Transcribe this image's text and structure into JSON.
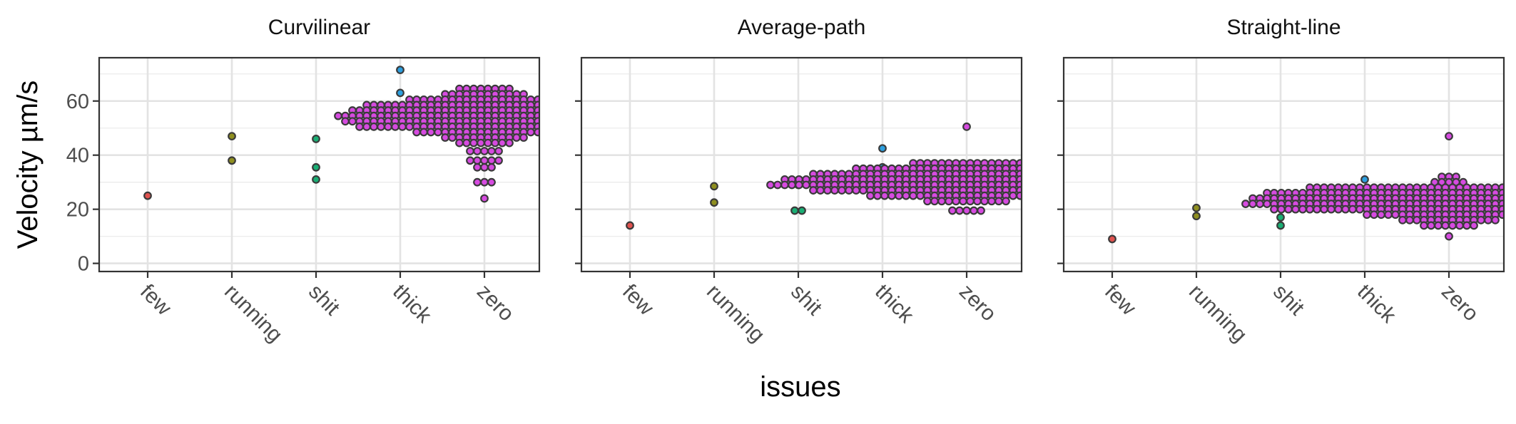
{
  "chart_data": {
    "type": "scatter",
    "style": "beeswarm-dotplot",
    "xlabel": "issues",
    "ylabel": "Velocity µm/s",
    "categories": [
      "few",
      "running",
      "shit",
      "thick",
      "zero"
    ],
    "category_colors": {
      "few": "#E0524F",
      "running": "#8F8F1F",
      "shit": "#1AAE74",
      "thick": "#2C9FE0",
      "zero": "#D64BE0"
    },
    "ylim": [
      -3,
      76
    ],
    "yticks": [
      0,
      20,
      40,
      60
    ],
    "grid": true,
    "legend": "none",
    "facets": [
      {
        "title": "Curvilinear",
        "points": {
          "few": [
            25
          ],
          "running": [
            38,
            47
          ],
          "shit": [
            31,
            35.5,
            46
          ],
          "thick": [
            63,
            71.5
          ]
        },
        "zero_rows": [
          {
            "y": 64.5,
            "n": 8
          },
          {
            "y": 62.5,
            "n": 12
          },
          {
            "y": 60.5,
            "n": 22
          },
          {
            "y": 58.5,
            "n": 34
          },
          {
            "y": 56.5,
            "n": 38
          },
          {
            "y": 54.5,
            "n": 42
          },
          {
            "y": 52.5,
            "n": 40
          },
          {
            "y": 50.5,
            "n": 36
          },
          {
            "y": 48.5,
            "n": 20
          },
          {
            "y": 46.5,
            "n": 12
          },
          {
            "y": 44.5,
            "n": 8
          },
          {
            "y": 41.5,
            "n": 5
          },
          {
            "y": 38,
            "n": 5
          },
          {
            "y": 35.5,
            "n": 3
          },
          {
            "y": 30,
            "n": 3
          },
          {
            "y": 24,
            "n": 1
          }
        ]
      },
      {
        "title": "Average-path",
        "points": {
          "few": [
            14
          ],
          "running": [
            22.5,
            28.5
          ],
          "shit": [
            19.5,
            19.5,
            29
          ],
          "thick": [
            35.5,
            42.5
          ]
        },
        "zero_rows": [
          {
            "y": 50.5,
            "n": 1
          },
          {
            "y": 37,
            "n": 16
          },
          {
            "y": 35,
            "n": 32
          },
          {
            "y": 33,
            "n": 44
          },
          {
            "y": 31,
            "n": 52
          },
          {
            "y": 29,
            "n": 56
          },
          {
            "y": 27,
            "n": 44
          },
          {
            "y": 25,
            "n": 28
          },
          {
            "y": 23,
            "n": 12
          },
          {
            "y": 19.5,
            "n": 5
          }
        ]
      },
      {
        "title": "Straight-line",
        "points": {
          "few": [
            9
          ],
          "running": [
            17.5,
            20.5
          ],
          "shit": [
            14,
            17,
            20.5
          ],
          "thick": [
            25,
            31
          ]
        },
        "zero_rows": [
          {
            "y": 47,
            "n": 1
          },
          {
            "y": 32,
            "n": 3
          },
          {
            "y": 30,
            "n": 5
          },
          {
            "y": 28,
            "n": 40
          },
          {
            "y": 26,
            "n": 52
          },
          {
            "y": 24,
            "n": 56
          },
          {
            "y": 22,
            "n": 58
          },
          {
            "y": 20,
            "n": 50
          },
          {
            "y": 18,
            "n": 24
          },
          {
            "y": 16,
            "n": 14
          },
          {
            "y": 14,
            "n": 8
          },
          {
            "y": 10,
            "n": 1
          }
        ]
      }
    ]
  }
}
